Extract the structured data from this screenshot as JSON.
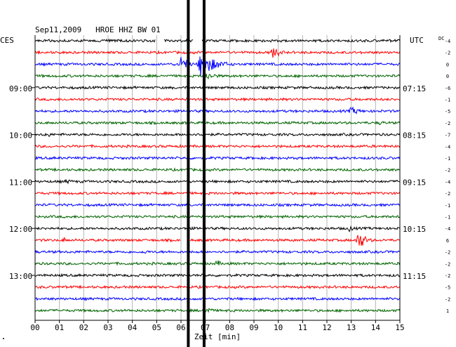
{
  "chart_data": {
    "type": "line",
    "title": "Sep11,2009   HROE HHZ BW 01",
    "left_corner_label": "CES",
    "right_corner_label": "UTC",
    "dc_label": "DC",
    "xlabel": "Zeit [min]",
    "xlim": [
      0,
      15
    ],
    "x_ticks": [
      "00",
      "01",
      "02",
      "03",
      "04",
      "05",
      "06",
      "07",
      "08",
      "09",
      "10",
      "11",
      "12",
      "13",
      "14",
      "15"
    ],
    "trace_colors": [
      "#000000",
      "#ff0000",
      "#0000ff",
      "#006400"
    ],
    "trace_count": 24,
    "left_time_labels": [
      {
        "trace": 4,
        "label": "09:00"
      },
      {
        "trace": 8,
        "label": "10:00"
      },
      {
        "trace": 12,
        "label": "11:00"
      },
      {
        "trace": 16,
        "label": "12:00"
      },
      {
        "trace": 20,
        "label": "13:00"
      }
    ],
    "right_time_labels": [
      {
        "trace": 4,
        "label": "07:15"
      },
      {
        "trace": 8,
        "label": "08:15"
      },
      {
        "trace": 12,
        "label": "09:15"
      },
      {
        "trace": 16,
        "label": "10:15"
      },
      {
        "trace": 20,
        "label": "11:15"
      }
    ],
    "dc_offsets": [
      "-4",
      "-2",
      "0",
      "0",
      "-6",
      "-1",
      "-5",
      "-2",
      "-7",
      "-4",
      "-1",
      "-2",
      "-4",
      "-2",
      "-1",
      "-1",
      "-4",
      "6",
      "-2",
      "-2",
      "-2",
      "-5",
      "-2",
      "1"
    ],
    "events": [
      {
        "trace": 1,
        "minute": 9.8,
        "amplitude": 9,
        "duration": 0.9
      },
      {
        "trace": 2,
        "minute": 6.8,
        "amplitude": 18,
        "duration": 1.8
      },
      {
        "trace": 2,
        "minute": 6.0,
        "amplitude": 14,
        "duration": 0.8
      },
      {
        "trace": 3,
        "minute": 7.0,
        "amplitude": 6,
        "duration": 1.5
      },
      {
        "trace": 6,
        "minute": 13.0,
        "amplitude": 6,
        "duration": 1.2
      },
      {
        "trace": 7,
        "minute": 14.2,
        "amplitude": 4,
        "duration": 0.6
      },
      {
        "trace": 8,
        "minute": 0.5,
        "amplitude": 6,
        "duration": 0.4
      },
      {
        "trace": 12,
        "minute": 1.3,
        "amplitude": 4,
        "duration": 0.8
      },
      {
        "trace": 16,
        "minute": 12.9,
        "amplitude": 5,
        "duration": 0.8
      },
      {
        "trace": 17,
        "minute": 13.3,
        "amplitude": 14,
        "duration": 0.9
      },
      {
        "trace": 17,
        "minute": 1.2,
        "amplitude": 4,
        "duration": 0.4
      },
      {
        "trace": 18,
        "minute": 4.5,
        "amplitude": 4,
        "duration": 0.4
      },
      {
        "trace": 19,
        "minute": 7.5,
        "amplitude": 6,
        "duration": 0.4
      },
      {
        "trace": 23,
        "minute": 7.0,
        "amplitude": 7,
        "duration": 0.8
      }
    ],
    "gaps": [
      {
        "trace": 0,
        "start": 4.95,
        "end": 5.3
      },
      {
        "trace": 0,
        "start": 6.5,
        "end": 6.85
      },
      {
        "trace": 17,
        "start": 6.0,
        "end": 6.35
      }
    ],
    "vertical_markers": [
      6.3,
      6.95
    ]
  }
}
